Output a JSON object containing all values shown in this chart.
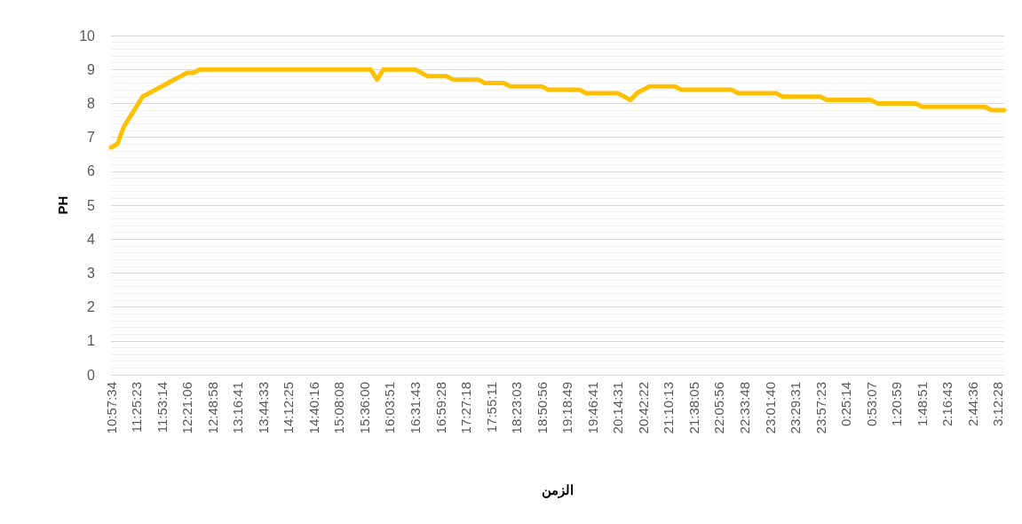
{
  "chart_data": {
    "type": "line",
    "xlabel": "الزمن",
    "ylabel": "PH",
    "categories": [
      "10:57:34",
      null,
      null,
      null,
      "11:25:23",
      null,
      null,
      null,
      "11:53:14",
      null,
      null,
      null,
      "12:21:06",
      null,
      null,
      null,
      "12:48:58",
      null,
      null,
      null,
      "13:16:41",
      null,
      null,
      null,
      "13:44:33",
      null,
      null,
      null,
      "14:12:25",
      null,
      null,
      null,
      "14:40:16",
      null,
      null,
      null,
      "15:08:08",
      null,
      null,
      null,
      "15:36:00",
      null,
      null,
      null,
      "16:03:51",
      null,
      null,
      null,
      "16:31:43",
      null,
      null,
      null,
      "16:59:28",
      null,
      null,
      null,
      "17:27:18",
      null,
      null,
      null,
      "17:55:11",
      null,
      null,
      null,
      "18:23:03",
      null,
      null,
      null,
      "18:50:56",
      null,
      null,
      null,
      "19:18:49",
      null,
      null,
      null,
      "19:46:41",
      null,
      null,
      null,
      "20:14:31",
      null,
      null,
      null,
      "20:42:22",
      null,
      null,
      null,
      "21:10:13",
      null,
      null,
      null,
      "21:38:05",
      null,
      null,
      null,
      "22:05:56",
      null,
      null,
      null,
      "22:33:48",
      null,
      null,
      null,
      "23:01:40",
      null,
      null,
      null,
      "23:29:31",
      null,
      null,
      null,
      "23:57:23",
      null,
      null,
      null,
      "0:25:14",
      null,
      null,
      null,
      "0:53:07",
      null,
      null,
      null,
      "1:20:59",
      null,
      null,
      null,
      "1:48:51",
      null,
      null,
      null,
      "2:16:43",
      null,
      null,
      null,
      "2:44:36",
      null,
      null,
      null,
      "3:12:28",
      null
    ],
    "series": [
      {
        "color": "#ffc000",
        "values": [
          6.7,
          6.8,
          7.3,
          7.6,
          7.9,
          8.2,
          8.3,
          8.4,
          8.5,
          8.6,
          8.7,
          8.8,
          8.9,
          8.9,
          9,
          9,
          9,
          9,
          9,
          9,
          9,
          9,
          9,
          9,
          9,
          9,
          9,
          9,
          9,
          9,
          9,
          9,
          9,
          9,
          9,
          9,
          9,
          9,
          9,
          9,
          9,
          9,
          8.7,
          9,
          9,
          9,
          9,
          9,
          9,
          8.9,
          8.8,
          8.8,
          8.8,
          8.8,
          8.7,
          8.7,
          8.7,
          8.7,
          8.7,
          8.6,
          8.6,
          8.6,
          8.6,
          8.5,
          8.5,
          8.5,
          8.5,
          8.5,
          8.5,
          8.4,
          8.4,
          8.4,
          8.4,
          8.4,
          8.4,
          8.3,
          8.3,
          8.3,
          8.3,
          8.3,
          8.3,
          8.2,
          8.1,
          8.3,
          8.4,
          8.5,
          8.5,
          8.5,
          8.5,
          8.5,
          8.4,
          8.4,
          8.4,
          8.4,
          8.4,
          8.4,
          8.4,
          8.4,
          8.4,
          8.3,
          8.3,
          8.3,
          8.3,
          8.3,
          8.3,
          8.3,
          8.2,
          8.2,
          8.2,
          8.2,
          8.2,
          8.2,
          8.2,
          8.1,
          8.1,
          8.1,
          8.1,
          8.1,
          8.1,
          8.1,
          8.1,
          8,
          8,
          8,
          8,
          8,
          8,
          8,
          7.9,
          7.9,
          7.9,
          7.9,
          7.9,
          7.9,
          7.9,
          7.9,
          7.9,
          7.9,
          7.9,
          7.8,
          7.8,
          7.8
        ]
      }
    ],
    "ylim": [
      0,
      10
    ],
    "yticks": [
      0,
      1,
      2,
      3,
      4,
      5,
      6,
      7,
      8,
      9,
      10
    ],
    "grid": "y",
    "marker": "none",
    "line_style": "solid"
  }
}
